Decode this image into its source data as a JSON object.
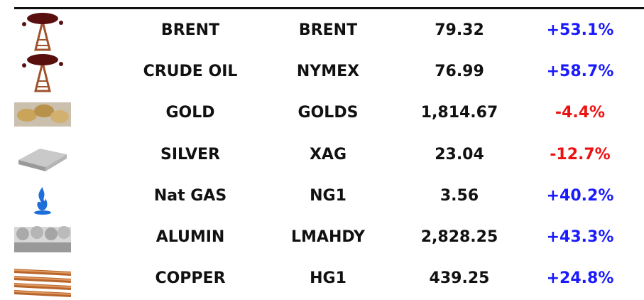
{
  "table": {
    "rows": [
      [
        "BRENT",
        "BRENT",
        "79.32",
        "+53.1%"
      ],
      [
        "CRUDE OIL",
        "NYMEX",
        "76.99",
        "+58.7%"
      ],
      [
        "GOLD",
        "GOLDS",
        "1,814.67",
        "-4.4%"
      ],
      [
        "SILVER",
        "XAG",
        "23.04",
        "-12.7%"
      ],
      [
        "Nat GAS",
        "NG1",
        "3.56",
        "+40.2%"
      ],
      [
        "ALUMIN",
        "LMAHDY",
        "2,828.25",
        "+43.3%"
      ],
      [
        "COPPER",
        "HG1",
        "439.25",
        "+24.8%"
      ]
    ],
    "positive_color": "#1a1aff",
    "negative_color": "#ee1111"
  }
}
